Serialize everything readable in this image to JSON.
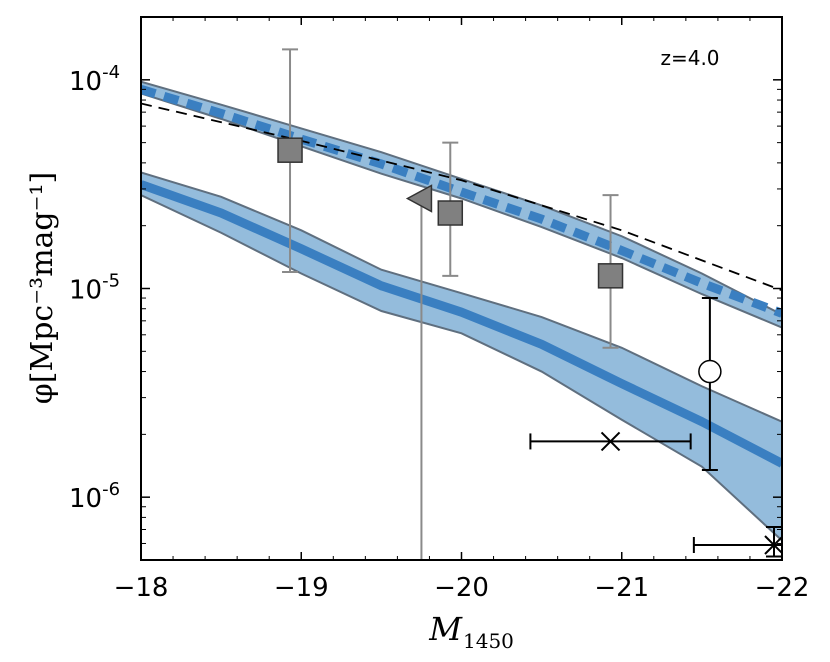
{
  "chart_data": {
    "type": "line",
    "xlabel": "M",
    "xlabel_sub": "1450",
    "ylabel": "φ[Mpc⁻³mag⁻¹]",
    "xlim": [
      -18,
      -22
    ],
    "ylim": [
      5e-07,
      0.0002
    ],
    "yscale": "log",
    "x_ticks": [
      {
        "value": -18,
        "label": "−18"
      },
      {
        "value": -19,
        "label": "−19"
      },
      {
        "value": -20,
        "label": "−20"
      },
      {
        "value": -21,
        "label": "−21"
      },
      {
        "value": -22,
        "label": "−22"
      }
    ],
    "y_ticks": [
      {
        "value": 0.0001,
        "base": "10",
        "exp": "-4"
      },
      {
        "value": 1e-05,
        "base": "10",
        "exp": "-5"
      },
      {
        "value": 1e-06,
        "base": "10",
        "exp": "-6"
      }
    ],
    "annotation": "z=4.0",
    "colors": {
      "band_fill": "#94bcdc",
      "band_edge": "#5f6f7f",
      "line": "#3a7fc1",
      "points": "#808080",
      "errbar_gray": "#8a8a8a",
      "black": "#000000"
    },
    "bands": [
      {
        "name": "upper-band",
        "x": [
          -18,
          -18.5,
          -19,
          -19.5,
          -20,
          -20.5,
          -21,
          -21.5,
          -22
        ],
        "upper": [
          9.8e-05,
          7.6e-05,
          5.85e-05,
          4.5e-05,
          3.35e-05,
          2.5e-05,
          1.78e-05,
          1.18e-05,
          7.5e-06
        ],
        "lower": [
          8.6e-05,
          6.5e-05,
          4.8e-05,
          3.55e-05,
          2.7e-05,
          1.97e-05,
          1.4e-05,
          9.4e-06,
          6.5e-06
        ]
      },
      {
        "name": "lower-band",
        "x": [
          -18,
          -18.5,
          -19,
          -19.5,
          -20,
          -20.5,
          -21,
          -21.5,
          -22
        ],
        "upper": [
          3.6e-05,
          2.75e-05,
          1.9e-05,
          1.23e-05,
          9.5e-06,
          7.3e-06,
          5.2e-06,
          3.4e-06,
          2.3e-06
        ],
        "lower": [
          2.8e-05,
          1.85e-05,
          1.18e-05,
          7.8e-06,
          6.1e-06,
          4e-06,
          2.35e-06,
          1.4e-06,
          6.2e-07
        ]
      }
    ],
    "series": [
      {
        "name": "model-solid",
        "style": "solid",
        "x": [
          -18,
          -18.5,
          -19,
          -19.5,
          -20,
          -20.5,
          -21,
          -21.5,
          -22
        ],
        "y": [
          3.15e-05,
          2.3e-05,
          1.55e-05,
          1.03e-05,
          7.7e-06,
          5.4e-06,
          3.5e-06,
          2.3e-06,
          1.45e-06
        ]
      },
      {
        "name": "model-dotted",
        "style": "dotted",
        "x": [
          -18,
          -18.5,
          -19,
          -19.5,
          -20,
          -20.5,
          -21,
          -21.5,
          -22
        ],
        "y": [
          9e-05,
          6.9e-05,
          5.2e-05,
          3.95e-05,
          2.9e-05,
          2.15e-05,
          1.52e-05,
          1.06e-05,
          7.6e-06
        ]
      },
      {
        "name": "fit-dashed",
        "style": "dashed",
        "x": [
          -18,
          -19,
          -20,
          -21,
          -22
        ],
        "y": [
          7.7e-05,
          5.1e-05,
          3.3e-05,
          1.9e-05,
          9.8e-06
        ]
      }
    ],
    "points": [
      {
        "marker": "square",
        "x": -18.93,
        "y": 4.6e-05,
        "yerr_low": 1.2e-05,
        "yerr_high": 0.00014
      },
      {
        "marker": "square",
        "x": -19.93,
        "y": 2.3e-05,
        "yerr_low": 1.15e-05,
        "yerr_high": 5e-05
      },
      {
        "marker": "square",
        "x": -20.93,
        "y": 1.15e-05,
        "yerr_low": 5.2e-06,
        "yerr_high": 2.8e-05
      },
      {
        "marker": "triangle-left",
        "x": -19.75,
        "y": 2.7e-05,
        "yerr_low": 5e-07,
        "yerr_high": 2.7e-05
      },
      {
        "marker": "circle",
        "x": -21.55,
        "y": 4e-06,
        "yerr_low": 1.35e-06,
        "yerr_high": 9e-06
      },
      {
        "marker": "x",
        "x": -20.93,
        "y": 1.85e-06,
        "xerr_low": -20.43,
        "xerr_high": -21.43
      },
      {
        "marker": "x",
        "x": -21.95,
        "y": 5.9e-07,
        "xerr_low": -21.45,
        "xerr_high": -22.0,
        "yerr_low": 5.2e-07,
        "yerr_high": 7.2e-07
      }
    ]
  }
}
